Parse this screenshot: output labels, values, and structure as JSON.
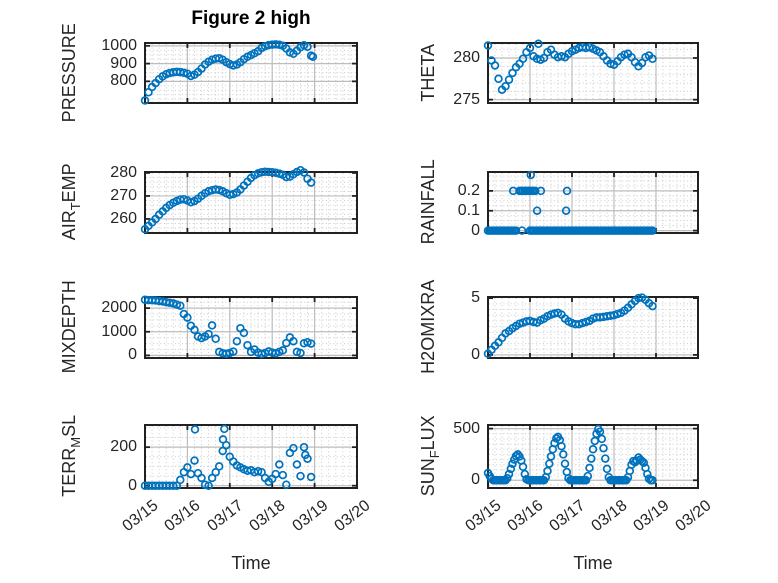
{
  "title": "Figure 2 high",
  "x_axis": {
    "label": "Time",
    "tick_labels": [
      "03/15",
      "03/16",
      "03/17",
      "03/18",
      "03/19",
      "03/20"
    ]
  },
  "colors": {
    "marker": "#0072BD",
    "axis": "#212121",
    "grid_major": "#bdbdbd",
    "grid_minor": "#c9c9c9",
    "title_color": "#000000",
    "label_color": "#262626"
  },
  "marker_style": "open-circle",
  "chart_data": [
    {
      "id": "pressure",
      "type": "scatter",
      "ylabel": {
        "pre": "PRESSURE",
        "sub": "",
        "post": ""
      },
      "ylim": [
        678,
        1016
      ],
      "yticks": [
        800,
        900,
        1000
      ],
      "ytick_labels": [
        "800",
        "900",
        "1000"
      ],
      "yminor_step": 25,
      "xlim": [
        0,
        5
      ],
      "xminor_step": 0.16667,
      "runs": [
        {
          "t0": 0,
          "dt": 0.083333,
          "values": [
            692,
            738,
            768,
            790,
            812,
            828,
            840,
            847,
            851,
            853,
            852,
            848,
            843,
            830,
            838,
            852,
            872,
            895,
            910,
            922,
            928,
            930,
            922,
            908,
            897,
            889,
            895,
            908,
            925,
            938,
            948,
            958,
            970,
            988,
            998,
            1004,
            1007,
            1008,
            1006,
            1000,
            985,
            963,
            955,
            972,
            992,
            1003,
            995,
            945
          ]
        }
      ],
      "points": [
        [
          3.96,
          938
        ]
      ]
    },
    {
      "id": "theta",
      "type": "scatter",
      "ylabel": {
        "pre": "THETA",
        "sub": "",
        "post": ""
      },
      "ylim": [
        274.6,
        281.8
      ],
      "yticks": [
        275,
        280
      ],
      "ytick_labels": [
        "275",
        "280"
      ],
      "yminor_step": 1,
      "xlim": [
        0,
        5
      ],
      "xminor_step": 0.16667,
      "runs": [
        {
          "t0": 0,
          "dt": 0.083333,
          "values": [
            281.5,
            279.7,
            279.1,
            277.5,
            276.2,
            276.6,
            277.4,
            278.2,
            278.9,
            279.3,
            279.9,
            280.7,
            281.2,
            280.2,
            279.9,
            279.8,
            280.0,
            280.7,
            281.0,
            280.4,
            280.1,
            280.2,
            280.1,
            280.5,
            280.8,
            281.0,
            281.2,
            281.3,
            281.2,
            281.3,
            281.1,
            280.9,
            280.7,
            280.2,
            279.7,
            279.3,
            279.2,
            279.6,
            280.1,
            280.4,
            280.5,
            280.1,
            279.5,
            279.0,
            279.4,
            280.1,
            280.3,
            279.9
          ]
        }
      ],
      "points": [
        [
          1.2,
          281.7
        ]
      ]
    },
    {
      "id": "air_temp",
      "type": "scatter",
      "ylabel": {
        "pre": "AIR",
        "sub": "T",
        "post": "EMP"
      },
      "ylim": [
        253.9,
        280.4
      ],
      "yticks": [
        260,
        270,
        280
      ],
      "ytick_labels": [
        "260",
        "270",
        "280"
      ],
      "yminor_step": 2,
      "xlim": [
        0,
        5
      ],
      "xminor_step": 0.16667,
      "runs": [
        {
          "t0": 0,
          "dt": 0.083333,
          "values": [
            255.5,
            257,
            258.5,
            260,
            261.8,
            263.3,
            264.8,
            266,
            267,
            267.8,
            268.4,
            268.6,
            268,
            267.3,
            267.8,
            268.8,
            270,
            271.2,
            272,
            272.5,
            272.8,
            272.6,
            272,
            271.2,
            270.5,
            270.8,
            271.5,
            272.8,
            274.5,
            276.2,
            277.8,
            279,
            279.8,
            280.3,
            280.5,
            280.4,
            280.3,
            280.1,
            279.7,
            279.2,
            278.2,
            278.4,
            279.4,
            280.4,
            281.2,
            280.2,
            277.5,
            275.8
          ]
        }
      ],
      "points": []
    },
    {
      "id": "rainfall",
      "type": "scatter",
      "ylabel": {
        "pre": "RAINFALL",
        "sub": "",
        "post": ""
      },
      "ylim": [
        -0.012,
        0.295
      ],
      "yticks": [
        0,
        0.1,
        0.2
      ],
      "ytick_labels": [
        "0",
        "0.1",
        "0.2"
      ],
      "yminor_step": 0.025,
      "xlim": [
        0,
        5
      ],
      "xminor_step": 0.16667,
      "runs": [
        {
          "t0": 0,
          "dt": 0.041667,
          "values": [
            0,
            0,
            0,
            0,
            0,
            0,
            0,
            0,
            0,
            0,
            0,
            0,
            0,
            0,
            0,
            0,
            0
          ]
        },
        {
          "t0": 1.0,
          "dt": 0.041667,
          "values": [
            0,
            0,
            0,
            0,
            0,
            0,
            0,
            0,
            0,
            0,
            0,
            0,
            0,
            0,
            0,
            0,
            0,
            0,
            0,
            0,
            0,
            0,
            0,
            0,
            0,
            0,
            0,
            0,
            0,
            0,
            0,
            0,
            0,
            0,
            0,
            0,
            0,
            0,
            0,
            0,
            0,
            0,
            0,
            0,
            0,
            0,
            0,
            0,
            0,
            0,
            0,
            0,
            0,
            0,
            0,
            0,
            0,
            0,
            0,
            0,
            0,
            0,
            0,
            0,
            0,
            0,
            0,
            0,
            0,
            0,
            0
          ]
        }
      ],
      "points": [
        [
          0.6,
          0.2
        ],
        [
          0.75,
          0.2
        ],
        [
          0.79,
          0.2
        ],
        [
          0.83,
          0.2
        ],
        [
          0.875,
          0.2
        ],
        [
          0.92,
          0.2
        ],
        [
          0.96,
          0.2
        ],
        [
          1.0,
          0.2
        ],
        [
          1.042,
          0.2
        ],
        [
          1.083,
          0.2
        ],
        [
          1.125,
          0.2
        ],
        [
          1.02,
          0.28
        ],
        [
          1.17,
          0.1
        ],
        [
          1.26,
          0.2
        ],
        [
          1.86,
          0.1
        ],
        [
          1.88,
          0.2
        ],
        [
          0.81,
          0
        ]
      ]
    },
    {
      "id": "mixdepth",
      "type": "scatter",
      "ylabel": {
        "pre": "MIXDEPTH",
        "sub": "",
        "post": ""
      },
      "ylim": [
        -110,
        2470
      ],
      "yticks": [
        0,
        1000,
        2000
      ],
      "ytick_labels": [
        "0",
        "1000",
        "2000"
      ],
      "yminor_step": 250,
      "xlim": [
        0,
        5
      ],
      "xminor_step": 0.16667,
      "runs": [
        {
          "t0": 0,
          "dt": 0.083333,
          "values": [
            2350,
            2340,
            2330,
            2320,
            2300,
            2280,
            2250,
            2230,
            2200,
            2150,
            2100,
            1750,
            1600,
            1250,
            1080,
            800,
            730,
            800,
            900,
            1270,
            700,
            150,
            90,
            70,
            100,
            160,
            600,
            1150,
            950,
            430,
            150,
            250,
            120,
            60,
            100,
            170,
            120,
            90,
            150,
            210,
            520,
            760,
            600,
            150,
            100,
            510,
            560,
            500
          ]
        }
      ],
      "points": []
    },
    {
      "id": "h2omixra",
      "type": "scatter",
      "ylabel": {
        "pre": "H2OMIXRA",
        "sub": "",
        "post": ""
      },
      "ylim": [
        -0.27,
        5.1
      ],
      "yticks": [
        0,
        5
      ],
      "ytick_labels": [
        "0",
        "5"
      ],
      "yminor_step": 0.5,
      "xlim": [
        0,
        5
      ],
      "xminor_step": 0.16667,
      "runs": [
        {
          "t0": 0,
          "dt": 0.083333,
          "values": [
            0.1,
            0.45,
            0.8,
            1.1,
            1.5,
            1.9,
            2.1,
            2.35,
            2.55,
            2.75,
            2.85,
            2.95,
            3.0,
            2.9,
            2.85,
            3.05,
            3.2,
            3.4,
            3.55,
            3.65,
            3.7,
            3.55,
            3.2,
            2.95,
            2.8,
            2.7,
            2.7,
            2.8,
            2.9,
            3.0,
            3.2,
            3.3,
            3.3,
            3.35,
            3.4,
            3.45,
            3.5,
            3.6,
            3.7,
            3.9,
            4.15,
            4.45,
            4.75,
            5.0,
            5.05,
            4.85,
            4.55,
            4.3
          ]
        }
      ],
      "points": []
    },
    {
      "id": "terr_msl",
      "type": "scatter",
      "ylabel": {
        "pre": "TERR",
        "sub": "M",
        "post": "SL"
      },
      "ylim": [
        -12,
        315
      ],
      "yticks": [
        0,
        200
      ],
      "ytick_labels": [
        "0",
        "200"
      ],
      "yminor_step": 50,
      "xlim": [
        0,
        5
      ],
      "xminor_step": 0.16667,
      "runs": [
        {
          "t0": 0,
          "dt": 0.083333,
          "values": [
            0,
            0,
            0,
            0,
            0,
            0,
            0,
            0,
            0,
            0,
            30,
            70,
            95,
            60,
            130,
            65,
            40,
            5,
            0,
            40,
            70,
            100,
            180,
            210,
            150,
            125,
            105,
            95,
            85,
            78,
            80,
            70,
            75,
            70,
            40,
            20,
            35,
            60,
            110,
            55,
            5,
            170,
            195,
            110,
            50,
            200,
            140,
            45
          ]
        }
      ],
      "points": [
        [
          1.18,
          292
        ],
        [
          1.84,
          240
        ],
        [
          1.87,
          295
        ],
        [
          3.78,
          160
        ]
      ]
    },
    {
      "id": "sun_flux",
      "type": "scatter",
      "ylabel": {
        "pre": "SUN",
        "sub": "F",
        "post": "LUX"
      },
      "ylim": [
        -75,
        535
      ],
      "yticks": [
        0,
        500
      ],
      "ytick_labels": [
        "0",
        "500"
      ],
      "yminor_step": 50,
      "xlim": [
        0,
        5
      ],
      "xminor_step": 0.16667,
      "runs": [
        {
          "t0": 0,
          "dt": 0.041667,
          "values": [
            70,
            40,
            15,
            0,
            0,
            0,
            0,
            0,
            0,
            0,
            0,
            20,
            60,
            110,
            160,
            200,
            235,
            250,
            230,
            190,
            130,
            60,
            10,
            0,
            0,
            0,
            0,
            0,
            0,
            0,
            0,
            0,
            0,
            30,
            90,
            160,
            230,
            300,
            360,
            405,
            420,
            390,
            330,
            250,
            160,
            80,
            20,
            0,
            0,
            0,
            0,
            0,
            0,
            0,
            0,
            0,
            0,
            40,
            120,
            210,
            300,
            380,
            450,
            495,
            470,
            400,
            310,
            210,
            110,
            30,
            0,
            0,
            0,
            0,
            0,
            0,
            0,
            0,
            0,
            0,
            30,
            90,
            150,
            185,
            175,
            190,
            220,
            200,
            185,
            170,
            120,
            60,
            15,
            0,
            0
          ]
        }
      ],
      "points": []
    }
  ]
}
